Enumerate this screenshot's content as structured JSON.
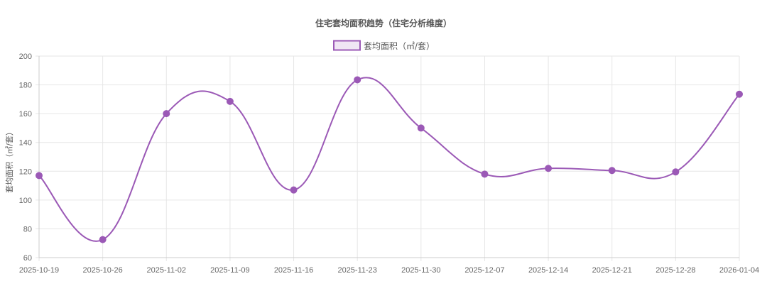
{
  "chart_data": {
    "type": "line",
    "title": "住宅套均面积趋势（住宅分析维度）",
    "ylabel": "套均面积（㎡/套）",
    "xlabel": "",
    "ylim": [
      60,
      200
    ],
    "y_ticks": [
      60,
      80,
      100,
      120,
      140,
      160,
      180,
      200
    ],
    "grid": true,
    "legend_position": "top-center",
    "categories": [
      "2025-10-19",
      "2025-10-26",
      "2025-11-02",
      "2025-11-09",
      "2025-11-16",
      "2025-11-23",
      "2025-11-30",
      "2025-12-07",
      "2025-12-14",
      "2025-12-21",
      "2025-12-28",
      "2026-01-04"
    ],
    "series": [
      {
        "name": "套均面积（㎡/套）",
        "color": "#9b59b6",
        "values": [
          117,
          72.5,
          160,
          168.5,
          107,
          183.5,
          150,
          118,
          122,
          120.5,
          119.5,
          173.5
        ]
      }
    ]
  }
}
